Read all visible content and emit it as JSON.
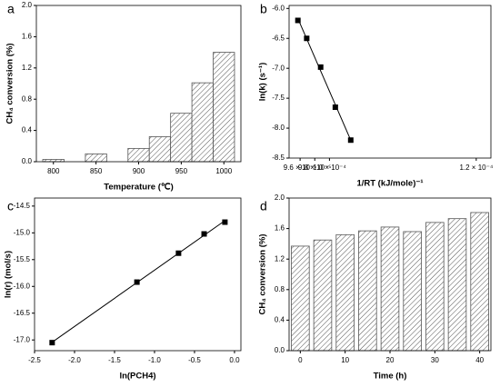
{
  "chart_data": [
    {
      "type": "bar",
      "label": "a",
      "x_label": "Temperature (℃)",
      "y_label": "CH₄ conversion (%)",
      "x": [
        800,
        850,
        900,
        925,
        950,
        975,
        1000
      ],
      "values": [
        0.03,
        0.1,
        0.17,
        0.32,
        0.62,
        1.01,
        1.4
      ],
      "color": "#555555",
      "xlim": [
        780,
        1020
      ],
      "xticks": [
        800,
        850,
        900,
        950,
        1000
      ],
      "ylim": [
        0,
        2.0
      ],
      "yticks": [
        {
          "value": 0,
          "label": "0.0"
        },
        0.4,
        0.8,
        1.2,
        1.6,
        {
          "value": 2,
          "label": "2.0"
        }
      ]
    },
    {
      "type": "scatter",
      "label": "b",
      "x_label": "1/RT (kJ/mole)⁻¹",
      "y_label": "ln(k)  (s⁻¹)",
      "x": [
        9.57e-05,
        9.69e-05,
        9.88e-05,
        0.0001008,
        0.0001029
      ],
      "values": [
        -6.2,
        -6.5,
        -6.98,
        -7.65,
        -8.2
      ],
      "color": "#000000",
      "fit_line": true,
      "xlim": [
        9.45e-05,
        0.000122
      ],
      "xticks": [
        {
          "value": 9.6e-05,
          "label": "9.6 × 10⁻⁵"
        },
        {
          "value": 9.8e-05,
          "label": "9.8 × 10⁻⁵"
        },
        {
          "value": 0.0001,
          "label": "1.0 × 10⁻⁴"
        },
        {
          "value": 0.00012,
          "label": "1.2 × 10⁻⁴"
        }
      ],
      "ylim": [
        -8.5,
        -5.95
      ],
      "yticks": [
        {
          "value": -6,
          "label": "-6.0"
        },
        -6.5,
        {
          "value": -7,
          "label": "-7.0"
        },
        -7.5,
        {
          "value": -8,
          "label": "-8.0"
        },
        -8.5
      ]
    },
    {
      "type": "scatter",
      "label": "c",
      "x_label": "ln(PCH4)",
      "y_label": "ln(r) (mol/s)",
      "x": [
        -2.28,
        -1.22,
        -0.7,
        -0.38,
        -0.12
      ],
      "values": [
        -17.05,
        -15.92,
        -15.38,
        -15.02,
        -14.8
      ],
      "color": "#000000",
      "fit_line": true,
      "xlim": [
        -2.5,
        0.08
      ],
      "xticks": [
        -2.5,
        {
          "value": -2,
          "label": "-2.0"
        },
        -1.5,
        {
          "value": -1,
          "label": "-1.0"
        },
        -0.5,
        {
          "value": 0,
          "label": "0.0"
        }
      ],
      "ylim": [
        -17.2,
        -14.35
      ],
      "yticks": [
        {
          "value": -17,
          "label": "-17.0"
        },
        -16.5,
        {
          "value": -16,
          "label": "-16.0"
        },
        -15.5,
        {
          "value": -15,
          "label": "-15.0"
        },
        -14.5
      ]
    },
    {
      "type": "bar",
      "label": "d",
      "x_label": "Time (h)",
      "y_label": "CH₄ conversion (%)",
      "x": [
        0,
        5,
        10,
        15,
        20,
        25,
        30,
        35,
        40
      ],
      "values": [
        1.37,
        1.45,
        1.52,
        1.57,
        1.62,
        1.56,
        1.68,
        1.73,
        1.81
      ],
      "color": "#555555",
      "xlim": [
        -2.5,
        42.5
      ],
      "xticks": [
        0,
        10,
        20,
        30,
        40
      ],
      "ylim": [
        0,
        2.0
      ],
      "yticks": [
        {
          "value": 0,
          "label": "0.0"
        },
        0.4,
        0.8,
        1.2,
        1.6,
        {
          "value": 2,
          "label": "2.0"
        }
      ]
    }
  ]
}
